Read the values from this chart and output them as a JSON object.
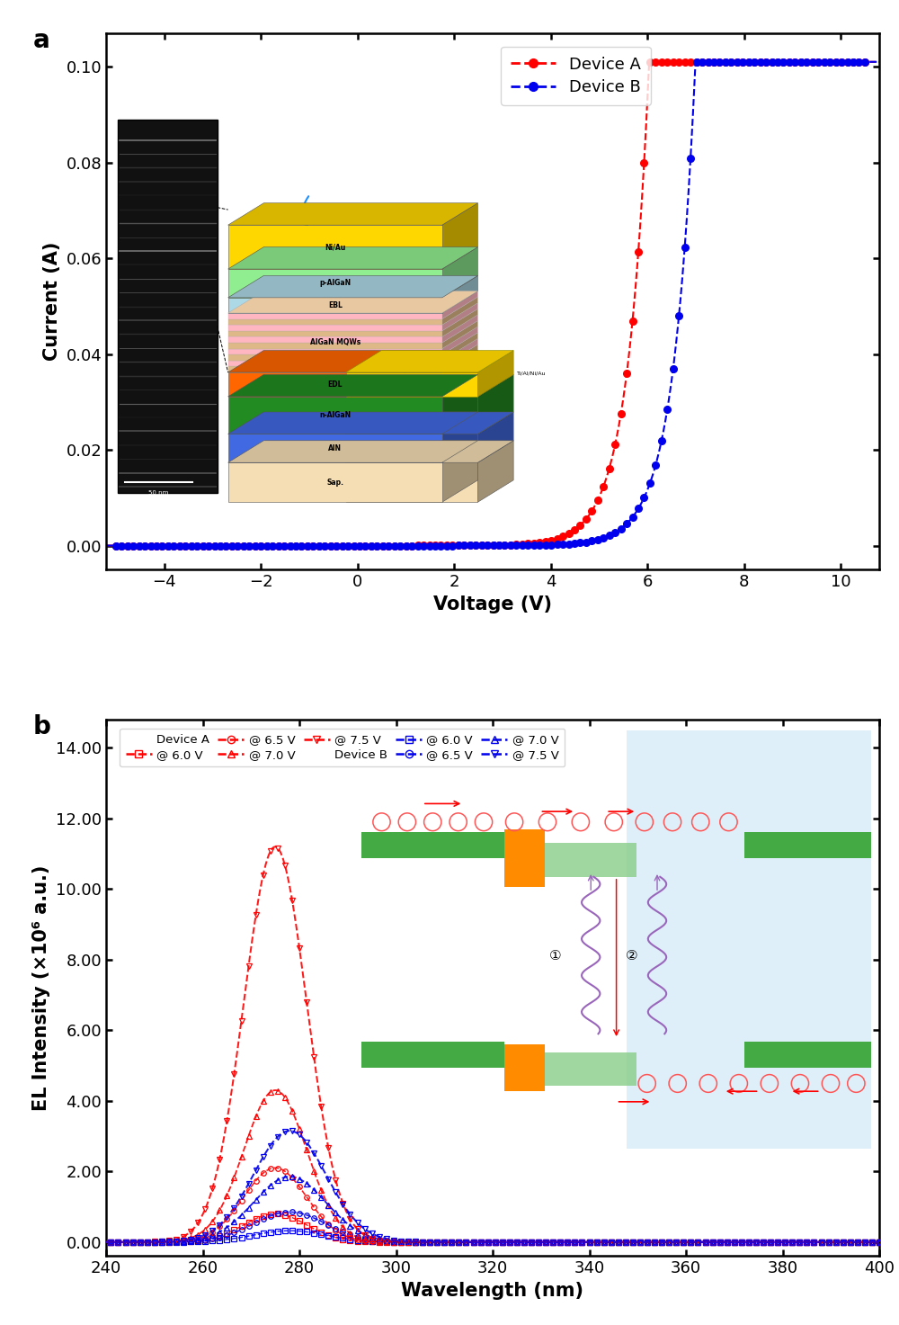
{
  "panel_a": {
    "xlabel": "Voltage (V)",
    "ylabel": "Current (A)",
    "xlim": [
      -5.2,
      10.8
    ],
    "ylim": [
      -0.005,
      0.107
    ],
    "xticks": [
      -4,
      -2,
      0,
      2,
      4,
      6,
      8,
      10
    ],
    "yticks": [
      0.0,
      0.02,
      0.04,
      0.06,
      0.08,
      0.1
    ],
    "device_a_color": "#FF0000",
    "device_b_color": "#0000EE",
    "label": "a"
  },
  "panel_b": {
    "xlabel": "Wavelength (nm)",
    "ylabel": "EL Intensity (×10⁶ a.u.)",
    "xlim": [
      240,
      400
    ],
    "ylim": [
      -0.4,
      14.8
    ],
    "xticks": [
      240,
      260,
      280,
      300,
      320,
      340,
      360,
      380,
      400
    ],
    "yticks": [
      0.0,
      2.0,
      4.0,
      6.0,
      8.0,
      10.0,
      12.0,
      14.0
    ],
    "device_a_color": "#FF0000",
    "device_b_color": "#0000EE",
    "voltages": [
      6.0,
      6.5,
      7.0,
      7.5
    ],
    "device_a_peaks": [
      0.8,
      2.1,
      4.3,
      11.2
    ],
    "device_b_peaks": [
      0.32,
      0.85,
      1.85,
      3.15
    ],
    "peak_a_nm": 275,
    "peak_b_nm": 278,
    "sigma_a": 6.5,
    "sigma_b": 7.5,
    "label": "b"
  }
}
